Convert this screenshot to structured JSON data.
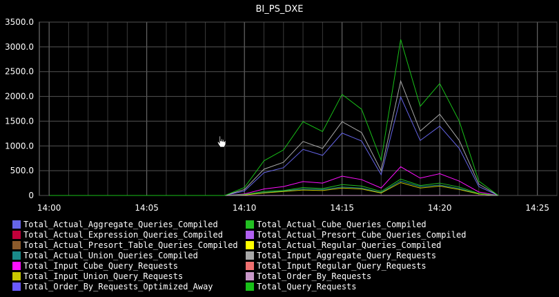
{
  "chart_data": {
    "type": "line",
    "title": "BI_PS_DXE",
    "xlabel": "",
    "ylabel": "",
    "xlim": [
      "13:59.5",
      "14:26"
    ],
    "ylim": [
      0,
      3500
    ],
    "y_ticks": [
      "0",
      "500.0",
      "1000.0",
      "1500.0",
      "2000.0",
      "2500.0",
      "3000.0",
      "3500.0"
    ],
    "x_ticks": [
      "14:00",
      "14:05",
      "14:10",
      "14:15",
      "14:20",
      "14:25"
    ],
    "grid": true,
    "legend_position": "bottom",
    "x": [
      "14:00",
      "14:01",
      "14:02",
      "14:03",
      "14:04",
      "14:05",
      "14:06",
      "14:07",
      "14:08",
      "14:09",
      "14:10",
      "14:11",
      "14:12",
      "14:13",
      "14:14",
      "14:15",
      "14:16",
      "14:17",
      "14:18",
      "14:19",
      "14:20",
      "14:21",
      "14:22",
      "14:23"
    ],
    "series": [
      {
        "name": "Total_Actual_Aggregate_Queries_Compiled",
        "color": "#6565e8",
        "values": [
          0,
          0,
          0,
          0,
          0,
          0,
          0,
          0,
          0,
          0,
          90,
          460,
          560,
          930,
          810,
          1260,
          1100,
          420,
          1990,
          1110,
          1400,
          950,
          180,
          0
        ]
      },
      {
        "name": "Total_Actual_Expression_Queries_Compiled",
        "color": "#c0003a",
        "values": [
          0,
          0,
          0,
          0,
          0,
          0,
          0,
          0,
          0,
          0,
          0,
          0,
          0,
          0,
          0,
          0,
          0,
          0,
          0,
          0,
          0,
          0,
          0,
          0
        ]
      },
      {
        "name": "Total_Actual_Presort_Table_Queries_Compiled",
        "color": "#8b5a2b",
        "values": [
          0,
          0,
          0,
          0,
          0,
          0,
          0,
          0,
          0,
          0,
          0,
          0,
          0,
          0,
          0,
          0,
          0,
          0,
          0,
          0,
          0,
          0,
          0,
          0
        ]
      },
      {
        "name": "Total_Actual_Union_Queries_Compiled",
        "color": "#1a8a8a",
        "values": [
          0,
          0,
          0,
          0,
          0,
          0,
          0,
          0,
          0,
          0,
          10,
          60,
          90,
          130,
          120,
          170,
          150,
          60,
          290,
          180,
          210,
          140,
          30,
          0
        ]
      },
      {
        "name": "Total_Input_Cube_Query_Requests",
        "color": "#ff10ff",
        "values": [
          0,
          0,
          0,
          0,
          0,
          0,
          0,
          0,
          0,
          0,
          30,
          130,
          180,
          280,
          250,
          390,
          320,
          150,
          580,
          350,
          440,
          290,
          70,
          0
        ]
      },
      {
        "name": "Total_Input_Union_Query_Requests",
        "color": "#c8c800",
        "values": [
          0,
          0,
          0,
          0,
          0,
          0,
          0,
          0,
          0,
          0,
          10,
          50,
          80,
          110,
          100,
          150,
          130,
          50,
          260,
          150,
          190,
          120,
          30,
          0
        ]
      },
      {
        "name": "Total_Order_By_Requests_Optimized_Away",
        "color": "#6a5aff",
        "values": [
          0,
          0,
          0,
          0,
          0,
          0,
          0,
          0,
          0,
          0,
          0,
          0,
          0,
          0,
          0,
          0,
          0,
          0,
          0,
          0,
          0,
          0,
          0,
          0
        ]
      },
      {
        "name": "Total_Actual_Cube_Queries_Compiled",
        "color": "#22c022",
        "values": [
          0,
          0,
          0,
          0,
          0,
          0,
          0,
          0,
          0,
          0,
          20,
          80,
          100,
          160,
          140,
          220,
          190,
          80,
          330,
          200,
          250,
          170,
          40,
          0
        ]
      },
      {
        "name": "Total_Actual_Presort_Cube_Queries_Compiled",
        "color": "#b060f0",
        "values": [
          0,
          0,
          0,
          0,
          0,
          0,
          0,
          0,
          0,
          0,
          0,
          0,
          0,
          0,
          0,
          0,
          0,
          0,
          0,
          0,
          0,
          0,
          0,
          0
        ]
      },
      {
        "name": "Total_Actual_Regular_Queries_Compiled",
        "color": "#ffff00",
        "values": [
          0,
          0,
          0,
          0,
          0,
          0,
          0,
          0,
          0,
          0,
          0,
          0,
          0,
          0,
          0,
          0,
          0,
          0,
          0,
          0,
          0,
          0,
          0,
          0
        ]
      },
      {
        "name": "Total_Input_Aggregate_Query_Requests",
        "color": "#a8a8a8",
        "values": [
          0,
          0,
          0,
          0,
          0,
          0,
          0,
          0,
          0,
          0,
          120,
          530,
          670,
          1090,
          950,
          1490,
          1270,
          500,
          2310,
          1300,
          1640,
          1110,
          230,
          0
        ]
      },
      {
        "name": "Total_Input_Regular_Query_Requests",
        "color": "#f07070",
        "values": [
          0,
          0,
          0,
          0,
          0,
          0,
          0,
          0,
          0,
          0,
          0,
          0,
          0,
          0,
          0,
          0,
          0,
          0,
          0,
          0,
          0,
          0,
          0,
          0
        ]
      },
      {
        "name": "Total_Order_By_Requests",
        "color": "#c898c8",
        "values": [
          0,
          0,
          0,
          0,
          0,
          0,
          0,
          0,
          0,
          0,
          0,
          0,
          0,
          0,
          0,
          0,
          0,
          0,
          0,
          0,
          0,
          0,
          0,
          0
        ]
      },
      {
        "name": "Total_Query_Requests",
        "color": "#18c018",
        "values": [
          0,
          0,
          0,
          0,
          0,
          0,
          0,
          0,
          0,
          0,
          160,
          700,
          920,
          1490,
          1290,
          2040,
          1740,
          710,
          3150,
          1800,
          2260,
          1500,
          290,
          0
        ]
      }
    ]
  },
  "legend_left": [
    "Total_Actual_Aggregate_Queries_Compiled",
    "Total_Actual_Expression_Queries_Compiled",
    "Total_Actual_Presort_Table_Queries_Compiled",
    "Total_Actual_Union_Queries_Compiled",
    "Total_Input_Cube_Query_Requests",
    "Total_Input_Union_Query_Requests",
    "Total_Order_By_Requests_Optimized_Away"
  ],
  "legend_right": [
    "Total_Actual_Cube_Queries_Compiled",
    "Total_Actual_Presort_Cube_Queries_Compiled",
    "Total_Actual_Regular_Queries_Compiled",
    "Total_Input_Aggregate_Query_Requests",
    "Total_Input_Regular_Query_Requests",
    "Total_Order_By_Requests",
    "Total_Query_Requests"
  ],
  "icons": {
    "cursor": "hand-pointer-icon"
  }
}
